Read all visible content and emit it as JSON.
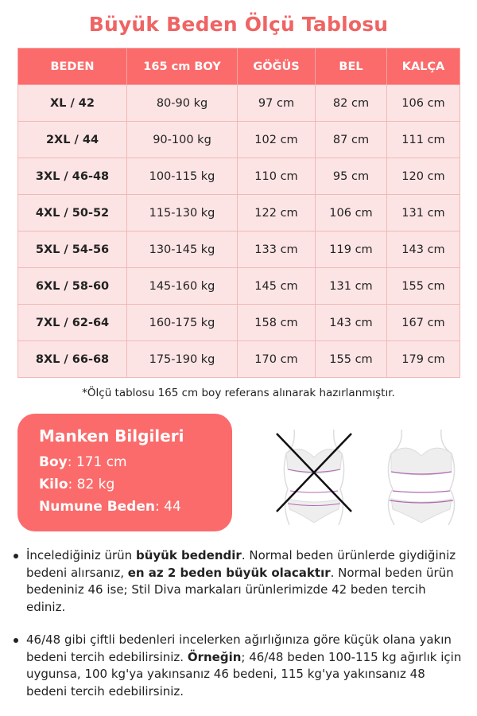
{
  "title": "Büyük Beden Ölçü Tablosu",
  "table": {
    "headers": [
      "BEDEN",
      "165 cm BOY",
      "GÖĞÜS",
      "BEL",
      "KALÇA"
    ],
    "rows": [
      [
        "XL / 42",
        "80-90 kg",
        "97 cm",
        "82 cm",
        "106 cm"
      ],
      [
        "2XL / 44",
        "90-100 kg",
        "102 cm",
        "87 cm",
        "111 cm"
      ],
      [
        "3XL / 46-48",
        "100-115 kg",
        "110 cm",
        "95 cm",
        "120 cm"
      ],
      [
        "4XL / 50-52",
        "115-130 kg",
        "122 cm",
        "106 cm",
        "131 cm"
      ],
      [
        "5XL / 54-56",
        "130-145 kg",
        "133 cm",
        "119 cm",
        "143 cm"
      ],
      [
        "6XL / 58-60",
        "145-160 kg",
        "145 cm",
        "131 cm",
        "155 cm"
      ],
      [
        "7XL / 62-64",
        "160-175 kg",
        "158 cm",
        "143 cm",
        "167 cm"
      ],
      [
        "8XL / 66-68",
        "175-190 kg",
        "170 cm",
        "155 cm",
        "179 cm"
      ]
    ]
  },
  "note": "*Ölçü tablosu 165 cm boy referans alınarak hazırlanmıştır.",
  "model": {
    "title": "Manken Bilgileri",
    "lines": [
      {
        "label": "Boy",
        "value": ": 171 cm"
      },
      {
        "label": "Kilo",
        "value": ": 82 kg"
      },
      {
        "label": "Numune Beden",
        "value": ": 44"
      }
    ]
  },
  "colors": {
    "accent": "#fb6b6b",
    "row": "#fde4e4",
    "title": "#ef6464"
  },
  "bullets": [
    [
      {
        "t": "İncelediğiniz ürün "
      },
      {
        "t": "büyük bedendir",
        "b": true
      },
      {
        "t": ". Normal beden ürünlerde giydiğiniz bedeni alırsanız, "
      },
      {
        "t": "en az 2 beden büyük olacaktır",
        "b": true
      },
      {
        "t": ". Normal beden ürün bedeniniz 46 ise; Stil Diva markaları ürünlerimizde 42 beden tercih ediniz."
      }
    ],
    [
      {
        "t": "46/48 gibi çiftli bedenleri incelerken ağırlığınıza göre küçük olana yakın bedeni tercih edebilirsiniz. "
      },
      {
        "t": "Örneğin",
        "b": true
      },
      {
        "t": "; 46/48 beden 100-115 kg ağırlık için uygunsa, 100 kg'ya yakınsanız 46 bedeni, 115 kg'ya yakınsanız 48 bedeni tercih edebilirsiniz."
      }
    ]
  ]
}
